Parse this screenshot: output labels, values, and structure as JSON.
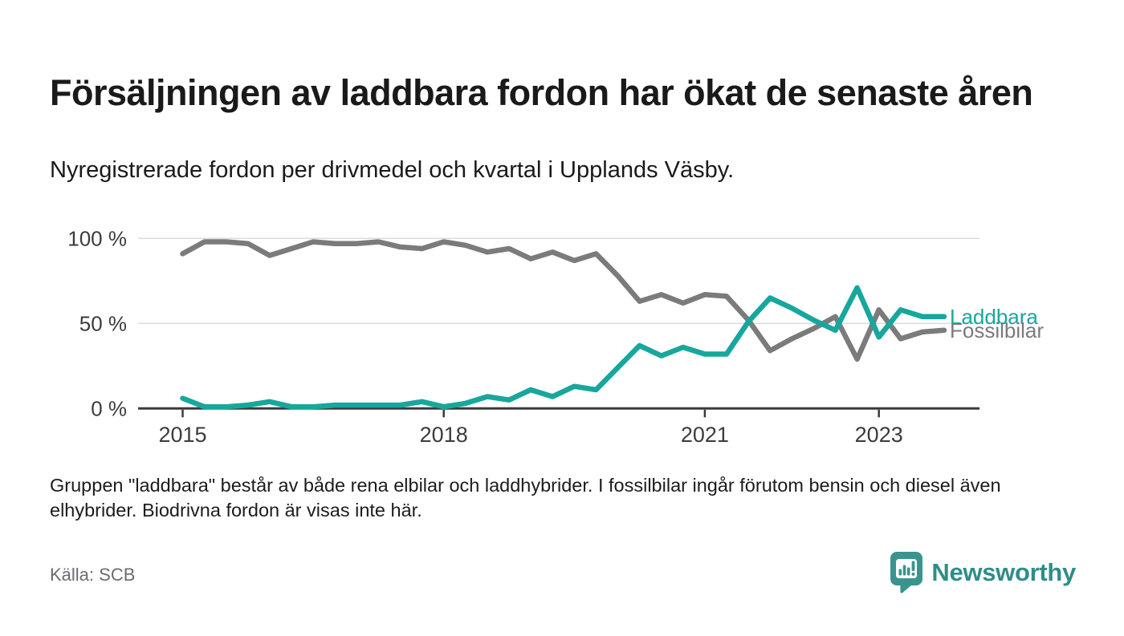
{
  "header": {
    "title": "Försäljningen av laddbara fordon har ökat de senaste åren",
    "subtitle": "Nyregistrerade fordon per drivmedel och kvartal i Upplands Väsby."
  },
  "chart_data": {
    "type": "line",
    "unit": "percent",
    "ylim": [
      0,
      100
    ],
    "grid": "horizontal",
    "categories": [
      "2015-Q1",
      "2015-Q2",
      "2015-Q3",
      "2015-Q4",
      "2016-Q1",
      "2016-Q2",
      "2016-Q3",
      "2016-Q4",
      "2017-Q1",
      "2017-Q2",
      "2017-Q3",
      "2017-Q4",
      "2018-Q1",
      "2018-Q2",
      "2018-Q3",
      "2018-Q4",
      "2019-Q1",
      "2019-Q2",
      "2019-Q3",
      "2019-Q4",
      "2020-Q1",
      "2020-Q2",
      "2020-Q3",
      "2020-Q4",
      "2021-Q1",
      "2021-Q2",
      "2021-Q3",
      "2021-Q4",
      "2022-Q1",
      "2022-Q2",
      "2022-Q3",
      "2022-Q4",
      "2023-Q1",
      "2023-Q2",
      "2023-Q3",
      "2023-Q4"
    ],
    "series": [
      {
        "name": "Fossilbilar",
        "color": "#7b7b7b",
        "values": [
          91,
          98,
          98,
          97,
          90,
          94,
          98,
          97,
          97,
          98,
          95,
          94,
          98,
          96,
          92,
          94,
          88,
          92,
          87,
          91,
          78,
          63,
          67,
          62,
          67,
          66,
          52,
          34,
          41,
          47,
          54,
          29,
          58,
          41,
          45,
          46
        ]
      },
      {
        "name": "Laddbara",
        "color": "#17a79c",
        "values": [
          6,
          1,
          1,
          2,
          4,
          1,
          1,
          2,
          2,
          2,
          2,
          4,
          1,
          3,
          7,
          5,
          11,
          7,
          13,
          11,
          24,
          37,
          31,
          36,
          32,
          32,
          51,
          65,
          59,
          52,
          46,
          71,
          42,
          58,
          54,
          54
        ]
      }
    ],
    "y_ticks": [
      {
        "value": 100,
        "label": "100 %"
      },
      {
        "value": 50,
        "label": "50 %"
      },
      {
        "value": 0,
        "label": "0 %"
      }
    ],
    "x_ticks": [
      {
        "index": 0,
        "label": "2015"
      },
      {
        "index": 12,
        "label": "2018"
      },
      {
        "index": 24,
        "label": "2021"
      },
      {
        "index": 32,
        "label": "2023"
      }
    ],
    "colors": {
      "gridline": "#dcdcdc",
      "axis": "#3a3a3a",
      "tick_label": "#3c3c3c"
    }
  },
  "footer": {
    "note": "Gruppen \"laddbara\" består av både rena elbilar och laddhybrider. I fossilbilar ingår förutom bensin och diesel även elhybrider. Biodrivna fordon är visas inte här.",
    "source": "Källa: SCB"
  },
  "logo": {
    "text": "Newsworthy",
    "color": "#2f8d88",
    "icon_color": "#3a948e"
  }
}
